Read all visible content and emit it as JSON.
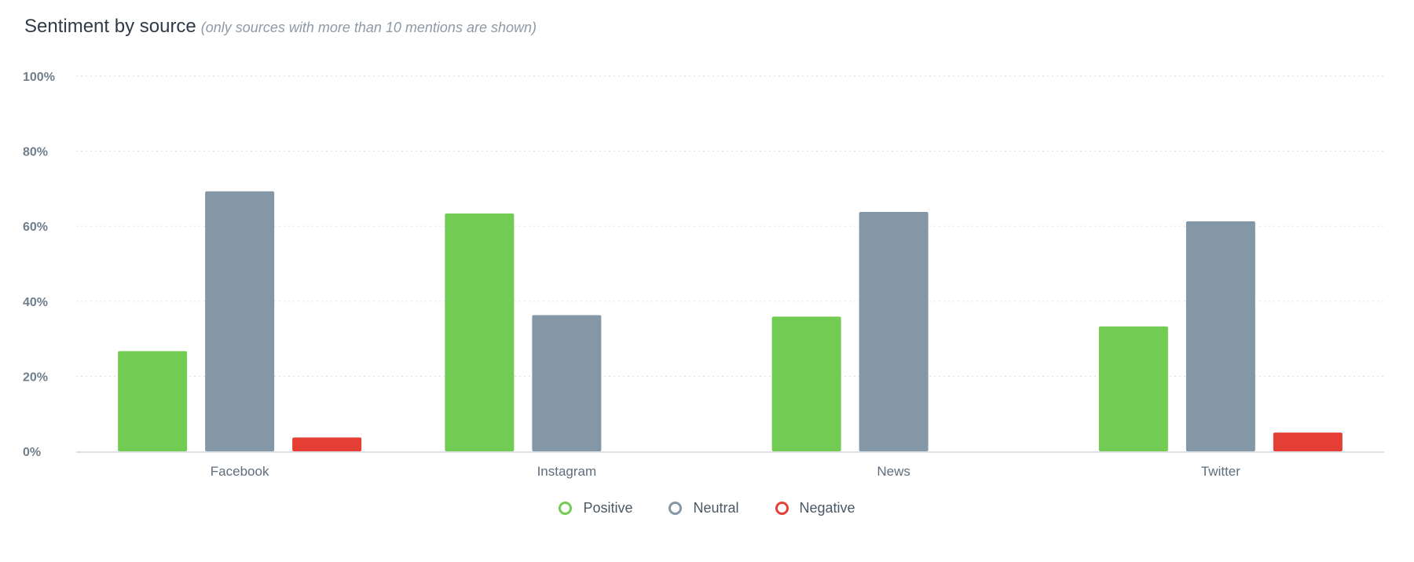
{
  "header": {
    "title": "Sentiment by source",
    "subtitle": "(only sources with more than 10 mentions are shown)"
  },
  "colors": {
    "positive": "#72cb52",
    "neutral": "#8397a6",
    "negative": "#e53f35",
    "grid": "#dfe3e8",
    "axis": "#cfd5db"
  },
  "chart_data": {
    "type": "bar",
    "categories": [
      "Facebook",
      "Instagram",
      "News",
      "Twitter"
    ],
    "series": [
      {
        "name": "Positive",
        "color": "#72cb52",
        "values": [
          26.7,
          63.4,
          35.9,
          33.3
        ]
      },
      {
        "name": "Neutral",
        "color": "#8397a6",
        "values": [
          69.3,
          36.3,
          63.8,
          61.3
        ]
      },
      {
        "name": "Negative",
        "color": "#e53f35",
        "values": [
          3.7,
          0,
          0,
          5.0
        ]
      }
    ],
    "ylim": [
      0,
      100
    ],
    "yticks": [
      "0%",
      "20%",
      "40%",
      "60%",
      "80%",
      "100%"
    ],
    "grid": true,
    "legend_position": "bottom-center"
  },
  "legend": [
    {
      "label": "Positive",
      "color": "#72cb52"
    },
    {
      "label": "Neutral",
      "color": "#8397a6"
    },
    {
      "label": "Negative",
      "color": "#e53f35"
    }
  ]
}
